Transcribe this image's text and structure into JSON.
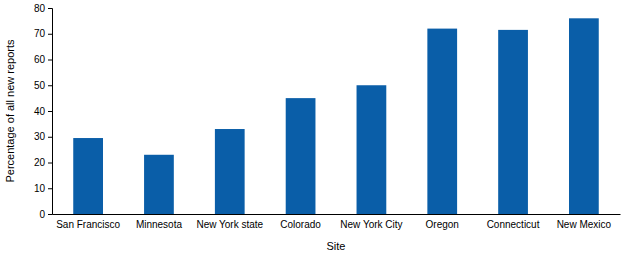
{
  "chart_data": {
    "type": "bar",
    "xlabel": "Site",
    "ylabel": "Percentage of all new reports",
    "categories": [
      "San Francisco",
      "Minnesota",
      "New York state",
      "Colorado",
      "New York City",
      "Oregon",
      "Connecticut",
      "New Mexico"
    ],
    "values": [
      29.5,
      23,
      33,
      45,
      50,
      72,
      71.5,
      76
    ],
    "color": "#0a5ea8",
    "ylim": [
      0,
      80
    ],
    "yticks": [
      0,
      10,
      20,
      30,
      40,
      50,
      60,
      70,
      80
    ],
    "grid": false
  }
}
